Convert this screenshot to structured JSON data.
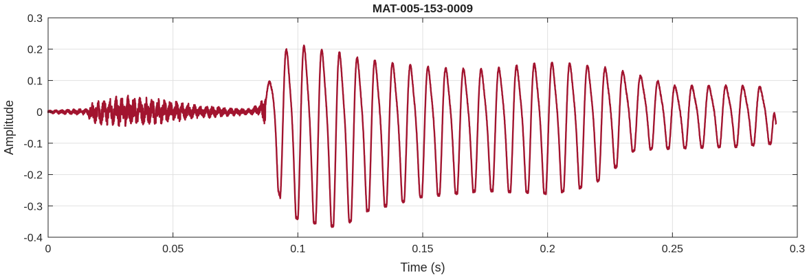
{
  "chart_data": {
    "type": "line",
    "title": "MAT-005-153-0009",
    "xlabel": "Time (s)",
    "ylabel": "Amplitude",
    "xlim": [
      0,
      0.3
    ],
    "ylim": [
      -0.4,
      0.3
    ],
    "x_ticks": [
      0,
      0.05,
      0.1,
      0.15,
      0.2,
      0.25,
      0.3
    ],
    "x_tick_labels": [
      "0",
      "0.05",
      "0.1",
      "0.15",
      "0.2",
      "0.25",
      "0.3"
    ],
    "y_ticks": [
      0.3,
      0.2,
      0.1,
      0,
      -0.1,
      -0.2,
      -0.3,
      -0.4
    ],
    "y_tick_labels": [
      "0.3",
      "0.2",
      "0.1",
      "0",
      "-0.1",
      "-0.2",
      "-0.3",
      "-0.4"
    ],
    "grid": true,
    "line_color": "#a2142f",
    "series": [
      {
        "x": [
          0,
          0.016,
          0.017,
          0.03,
          0.045,
          0.06,
          0.08,
          0.085,
          0.088,
          0.092,
          0.095,
          0.1,
          0.105,
          0.11,
          0.118,
          0.125,
          0.15,
          0.175,
          0.2,
          0.21,
          0.22,
          0.23,
          0.235,
          0.25,
          0.275,
          0.29,
          0.2915
        ],
        "envelope_upper": [
          0.005,
          0.01,
          0.03,
          0.05,
          0.04,
          0.02,
          0.01,
          0.025,
          0.09,
          0.2,
          0.22,
          0.235,
          0.23,
          0.22,
          0.21,
          0.19,
          0.16,
          0.15,
          0.175,
          0.17,
          0.16,
          0.14,
          0.13,
          0.09,
          0.09,
          0.085,
          -0.04
        ],
        "envelope_lower": [
          -0.005,
          -0.01,
          -0.035,
          -0.045,
          -0.035,
          -0.02,
          -0.01,
          -0.01,
          -0.06,
          -0.25,
          -0.32,
          -0.34,
          -0.35,
          -0.36,
          -0.37,
          -0.32,
          -0.27,
          -0.25,
          -0.26,
          -0.25,
          -0.22,
          -0.16,
          -0.12,
          -0.115,
          -0.11,
          -0.1,
          -0.04
        ]
      }
    ]
  }
}
